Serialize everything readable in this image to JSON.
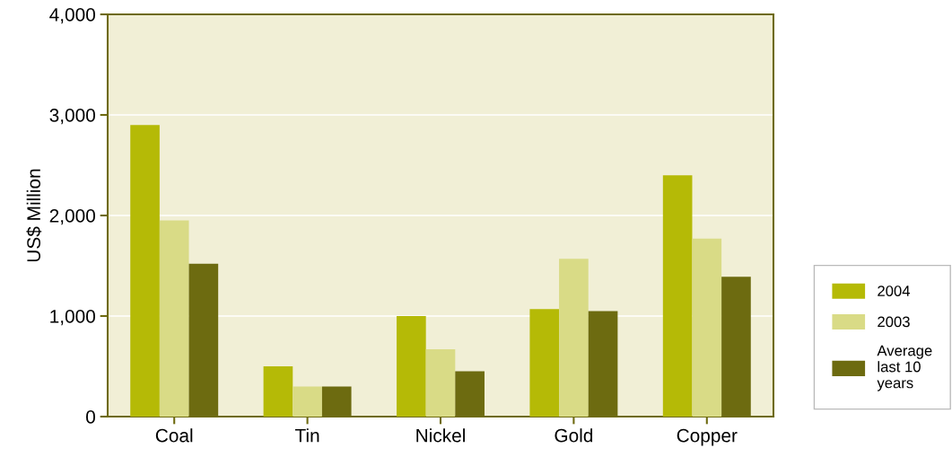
{
  "chart_data": {
    "type": "bar",
    "ylabel": "US$ Million",
    "categories": [
      "Coal",
      "Tin",
      "Nickel",
      "Gold",
      "Copper"
    ],
    "series": [
      {
        "name": "2004",
        "color": "#b5ba06",
        "values": [
          2900,
          500,
          1000,
          1070,
          2400
        ]
      },
      {
        "name": "2003",
        "color": "#d9db86",
        "values": [
          1950,
          300,
          670,
          1570,
          1770
        ]
      },
      {
        "name": "Average\nlast 10\nyears",
        "color": "#6d6b10",
        "values": [
          1520,
          300,
          450,
          1050,
          1390
        ]
      }
    ],
    "ylim": [
      0,
      4000
    ],
    "yticks": [
      {
        "value": 0,
        "label": "0"
      },
      {
        "value": 1000,
        "label": "1,000"
      },
      {
        "value": 2000,
        "label": "2,000"
      },
      {
        "value": 3000,
        "label": "3,000"
      },
      {
        "value": 4000,
        "label": "4,000"
      }
    ],
    "grid": "y",
    "legend": "right"
  }
}
